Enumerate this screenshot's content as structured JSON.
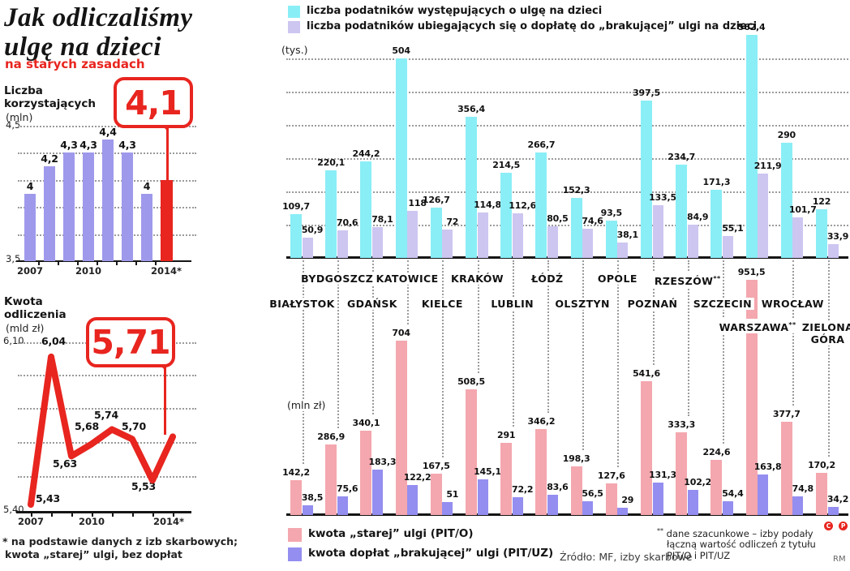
{
  "colors": {
    "red": "#e8251f",
    "cyan": "#8aeef6",
    "lavender": "#cdc6f1",
    "pink": "#f4a7ae",
    "violet": "#948ef0",
    "periwinkle": "#9f99ec",
    "text": "#141414",
    "grid": "#9b9b9b"
  },
  "header": {
    "title_line1": "Jak odliczaliśmy",
    "title_line2": "ulgę na dzieci",
    "subtitle": "na starych zasadach"
  },
  "source": "Źródło: MF, izby skarbowe",
  "credit": "RM",
  "badges": [
    "C",
    "P"
  ],
  "footnotes": {
    "left": [
      "* na podstawie danych z izb skarbowych;",
      "kwota „starej” ulgi, bez dopłat"
    ],
    "right": [
      "** dane szacunkowe – izby podały",
      "łączną wartość odliczeń z tytułu",
      "PIT/O i PIT/UZ"
    ]
  },
  "chart_data": [
    {
      "id": "liczba-korzystajacych",
      "type": "bar",
      "title": "Liczba korzystających",
      "unit": "(mln)",
      "callout": "4,1",
      "categories": [
        "2007",
        "2008",
        "2009",
        "2010",
        "2011",
        "2012",
        "2013",
        "2014*"
      ],
      "values": [
        4,
        4.2,
        4.3,
        4.3,
        4.4,
        4.3,
        4,
        4.1
      ],
      "value_labels": [
        "4",
        "4,2",
        "4,3",
        "4,3",
        "4,4",
        "4,3",
        "4",
        ""
      ],
      "highlight_index": 7,
      "ylim": [
        3.5,
        4.5
      ],
      "ytick_labels": [
        "4,5",
        "3,5"
      ],
      "grid_values": [
        4.5,
        4.3,
        4.1,
        3.9,
        3.7
      ],
      "xticks": [
        {
          "label": "2007",
          "index": 0
        },
        {
          "label": "2010",
          "index": 3
        },
        {
          "label": "2014*",
          "index": 7
        }
      ]
    },
    {
      "id": "kwota-odliczenia",
      "type": "line",
      "title": "Kwota odliczenia",
      "unit": "(mld zł)",
      "callout": "5,71",
      "categories": [
        "2007",
        "2008",
        "2009",
        "2010",
        "2011",
        "2012",
        "2013",
        "2014*"
      ],
      "values": [
        5.43,
        6.04,
        5.63,
        5.68,
        5.74,
        5.7,
        5.53,
        5.71
      ],
      "value_labels": [
        "5,43",
        "6,04",
        "5,63",
        "5,68",
        "5,74",
        "5,70",
        "5,53",
        ""
      ],
      "highlight_index": 7,
      "ylim": [
        5.4,
        6.1
      ],
      "ytick_labels": [
        "6,10",
        "5,40"
      ],
      "xticks": [
        {
          "label": "2007",
          "index": 0
        },
        {
          "label": "2010",
          "index": 3
        },
        {
          "label": "2014*",
          "index": 7
        }
      ]
    },
    {
      "id": "podatnicy-tys",
      "type": "grouped-bar",
      "unit": "(tys.)",
      "categories": [
        "BIAŁYSTOK",
        "BYDGOSZCZ",
        "GDAŃSK",
        "KATOWICE",
        "KIELCE",
        "KRAKÓW",
        "LUBLIN",
        "ŁÓDŹ",
        "OLSZTYN",
        "OPOLE",
        "POZNAŃ",
        "RZESZÓW**",
        "SZCZECIN",
        "WARSZAWA**",
        "WROCŁAW",
        "ZIELONA GÓRA"
      ],
      "series": [
        {
          "name": "liczba podatników występujących o ulgę na dzieci",
          "color": "#8aeef6",
          "values": [
            109.7,
            220.1,
            244.2,
            504,
            126.7,
            356.4,
            214.5,
            266.7,
            152.3,
            93.5,
            397.5,
            234.7,
            171.3,
            562.4,
            290,
            122
          ],
          "labels": [
            "109,7",
            "220,1",
            "244,2",
            "504",
            "126,7",
            "356,4",
            "214,5",
            "266,7",
            "152,3",
            "93,5",
            "397,5",
            "234,7",
            "171,3",
            "562,4",
            "290",
            "122"
          ]
        },
        {
          "name": "liczba podatników ubiegających się o dopłatę do „brakującej” ulgi na dzieci",
          "color": "#cdc6f1",
          "values": [
            50.9,
            70.6,
            78.1,
            118,
            72,
            114.8,
            112.6,
            80.5,
            74.6,
            38.1,
            133.5,
            84.9,
            55.1,
            211.9,
            101.7,
            33.9
          ],
          "labels": [
            "50,9",
            "70,6",
            "78,1",
            "118",
            "72",
            "114,8",
            "112,6",
            "80,5",
            "74,6",
            "38,1",
            "133,5",
            "84,9",
            "55,1",
            "211,9",
            "101,7",
            "33,9"
          ]
        }
      ]
    },
    {
      "id": "kwoty-mln",
      "type": "grouped-bar",
      "unit": "(mln zł)",
      "categories": [
        "BIAŁYSTOK",
        "BYDGOSZCZ",
        "GDAŃSK",
        "KATOWICE",
        "KIELCE",
        "KRAKÓW",
        "LUBLIN",
        "ŁÓDŹ",
        "OLSZTYN",
        "OPOLE",
        "POZNAŃ",
        "RZESZÓW**",
        "SZCZECIN",
        "WARSZAWA**",
        "WROCŁAW",
        "ZIELONA GÓRA"
      ],
      "series": [
        {
          "name": "kwota „starej” ulgi (PIT/O)",
          "color": "#f4a7ae",
          "values": [
            142.2,
            286.9,
            340.1,
            704,
            167.5,
            508.5,
            291,
            346.2,
            198.3,
            127.6,
            541.6,
            333.3,
            224.6,
            951.5,
            377.7,
            170.2
          ],
          "labels": [
            "142,2",
            "286,9",
            "340,1",
            "704",
            "167,5",
            "508,5",
            "291",
            "346,2",
            "198,3",
            "127,6",
            "541,6",
            "333,3",
            "224,6",
            "951,5",
            "377,7",
            "170,2"
          ]
        },
        {
          "name": "kwota dopłat „brakującej” ulgi (PIT/UZ)",
          "color": "#948ef0",
          "values": [
            38.5,
            75.6,
            183.3,
            122.2,
            51,
            145.1,
            72.2,
            83.6,
            56.5,
            29,
            131.3,
            102.2,
            54.4,
            163.8,
            74.8,
            34.2
          ],
          "labels": [
            "38,5",
            "75,6",
            "183,3",
            "122,2",
            "51",
            "145,1",
            "72,2",
            "83,6",
            "56,5",
            "29",
            "131,3",
            "102,2",
            "54,4",
            "163,8",
            "74,8",
            "34,2"
          ]
        }
      ]
    }
  ]
}
